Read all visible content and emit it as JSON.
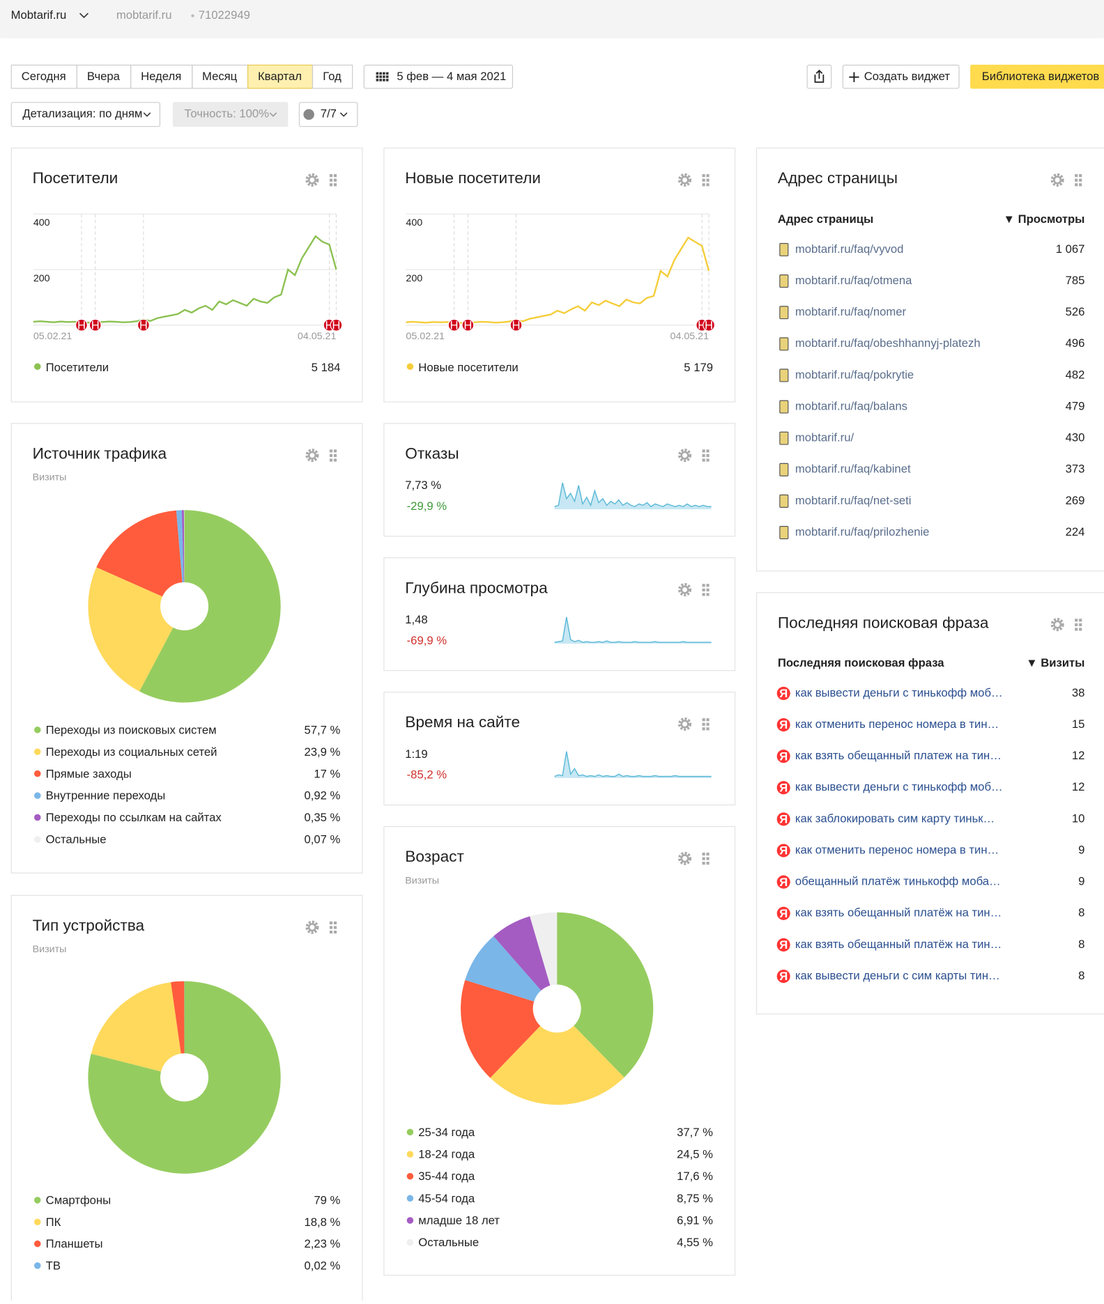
{
  "header": {
    "site": "Mobtarif.ru",
    "site_url": "mobtarif.ru",
    "counter_id": "71022949"
  },
  "toolbar": {
    "periods": [
      "Сегодня",
      "Вчера",
      "Неделя",
      "Месяц",
      "Квартал",
      "Год"
    ],
    "active_period": 4,
    "date_range": "5 фев — 4 мая 2021",
    "create_widget": "Создать виджет",
    "library": "Библиотека виджетов",
    "detail": "Детализация: по дням",
    "accuracy": "Точность: 100%",
    "segments": "7/7"
  },
  "visitors": {
    "title": "Посетители",
    "ylim": [
      0,
      400
    ],
    "yticks": [
      200,
      400
    ],
    "x_labels": [
      "05.02.21",
      "04.05.21"
    ],
    "color": "#8cc152",
    "values": [
      12,
      14,
      12,
      10,
      13,
      11,
      12,
      10,
      9,
      12,
      11,
      13,
      12,
      10,
      11,
      14,
      20,
      15,
      25,
      30,
      35,
      40,
      55,
      45,
      60,
      70,
      55,
      85,
      75,
      90,
      80,
      70,
      95,
      85,
      80,
      100,
      110,
      200,
      180,
      240,
      280,
      320,
      300,
      290,
      200
    ],
    "legend": "Посетители",
    "total": "5 184",
    "event_label": "Н",
    "events": [
      7,
      9,
      16,
      43,
      44
    ]
  },
  "new_visitors": {
    "title": "Новые посетители",
    "ylim": [
      0,
      400
    ],
    "yticks": [
      200,
      400
    ],
    "x_labels": [
      "05.02.21",
      "04.05.21"
    ],
    "color": "#f5cd3a",
    "values": [
      10,
      12,
      10,
      9,
      11,
      10,
      11,
      9,
      8,
      11,
      10,
      12,
      11,
      9,
      10,
      13,
      18,
      14,
      23,
      28,
      33,
      38,
      52,
      43,
      57,
      68,
      52,
      82,
      72,
      88,
      78,
      68,
      92,
      82,
      78,
      98,
      105,
      195,
      175,
      235,
      275,
      315,
      300,
      285,
      195
    ],
    "legend": "Новые посетители",
    "total": "5 179",
    "event_label": "Н",
    "events": [
      7,
      9,
      16,
      43,
      44
    ]
  },
  "bounce": {
    "title": "Отказы",
    "value": "7,73 %",
    "change": "-29,9 %",
    "change_color": "#3f9b3a",
    "trend": [
      2,
      3,
      20,
      8,
      12,
      6,
      18,
      4,
      9,
      3,
      14,
      5,
      8,
      3,
      6,
      4,
      7,
      3,
      5,
      3,
      2,
      4,
      3,
      5,
      2,
      4,
      3,
      2,
      4,
      3,
      2,
      3,
      2,
      4,
      2,
      3,
      2,
      3,
      2,
      2
    ]
  },
  "depth": {
    "title": "Глубина просмотра",
    "value": "1,48",
    "change": "-69,9 %",
    "change_color": "#d0312d",
    "trend": [
      2,
      3,
      4,
      40,
      6,
      3,
      5,
      2,
      3,
      2,
      2,
      3,
      2,
      4,
      2,
      2,
      3,
      2,
      2,
      2,
      3,
      2,
      2,
      2,
      2,
      3,
      2,
      2,
      2,
      2,
      2,
      2,
      3,
      2,
      2,
      2,
      2,
      2,
      2,
      2
    ]
  },
  "time": {
    "title": "Время на сайте",
    "value": "1:19",
    "change": "-85,2 %",
    "change_color": "#d0312d",
    "trend": [
      2,
      4,
      3,
      34,
      5,
      12,
      3,
      4,
      2,
      3,
      2,
      4,
      2,
      3,
      2,
      2,
      5,
      2,
      3,
      2,
      2,
      3,
      2,
      2,
      2,
      3,
      2,
      2,
      2,
      2,
      3,
      2,
      2,
      2,
      2,
      2,
      2,
      2,
      2,
      2
    ]
  },
  "traffic": {
    "title": "Источник трафика",
    "subtitle": "Визиты",
    "labels": [
      "Переходы из поисковых систем",
      "Переходы из социальных сетей",
      "Прямые заходы",
      "Внутренние переходы",
      "Переходы по ссылкам на сайтах",
      "Остальные"
    ],
    "values": [
      57.7,
      23.9,
      17,
      0.92,
      0.35,
      0.07
    ],
    "value_labels": [
      "57,7 %",
      "23,9 %",
      "17 %",
      "0,92 %",
      "0,35 %",
      "0,07 %"
    ],
    "colors": [
      "#95cc5f",
      "#ffd95c",
      "#ff5c3d",
      "#7ab6e8",
      "#a45cc2",
      "#efefef"
    ]
  },
  "devices": {
    "title": "Тип устройства",
    "subtitle": "Визиты",
    "labels": [
      "Смартфоны",
      "ПК",
      "Планшеты",
      "ТВ"
    ],
    "values": [
      79,
      18.8,
      2.23,
      0.02
    ],
    "value_labels": [
      "79 %",
      "18,8 %",
      "2,23 %",
      "0,02 %"
    ],
    "colors": [
      "#95cc5f",
      "#ffd95c",
      "#ff5c3d",
      "#7ab6e8"
    ]
  },
  "age": {
    "title": "Возраст",
    "subtitle": "Визиты",
    "labels": [
      "25-34 года",
      "18-24 года",
      "35-44 года",
      "45-54 года",
      "младше 18 лет",
      "Остальные"
    ],
    "values": [
      37.7,
      24.5,
      17.6,
      8.75,
      6.91,
      4.55
    ],
    "value_labels": [
      "37,7 %",
      "24,5 %",
      "17,6 %",
      "8,75 %",
      "6,91 %",
      "4,55 %"
    ],
    "colors": [
      "#95cc5f",
      "#ffd95c",
      "#ff5c3d",
      "#7ab6e8",
      "#a45cc2",
      "#efefef"
    ]
  },
  "pages": {
    "title": "Адрес страницы",
    "columns": [
      "Адрес страницы",
      "▼ Просмотры"
    ],
    "rows": [
      [
        "mobtarif.ru/faq/vyvod",
        "1 067"
      ],
      [
        "mobtarif.ru/faq/otmena",
        "785"
      ],
      [
        "mobtarif.ru/faq/nomer",
        "526"
      ],
      [
        "mobtarif.ru/faq/obeshhannyj-platezh",
        "496"
      ],
      [
        "mobtarif.ru/faq/pokrytie",
        "482"
      ],
      [
        "mobtarif.ru/faq/balans",
        "479"
      ],
      [
        "mobtarif.ru/",
        "430"
      ],
      [
        "mobtarif.ru/faq/kabinet",
        "373"
      ],
      [
        "mobtarif.ru/faq/net-seti",
        "269"
      ],
      [
        "mobtarif.ru/faq/prilozhenie",
        "224"
      ]
    ]
  },
  "phrases": {
    "title": "Последняя поисковая фраза",
    "columns": [
      "Последняя поисковая фраза",
      "▼ Визиты"
    ],
    "engine_icon": "Я",
    "rows": [
      [
        "как вывести деньги с тинькофф моб…",
        "38"
      ],
      [
        "как отменить перенос номера в тин…",
        "15"
      ],
      [
        "как взять обещанный платеж на тин…",
        "12"
      ],
      [
        "как вывести деньги с тинькофф моб…",
        "12"
      ],
      [
        "как заблокировать сим карту тиньк…",
        "10"
      ],
      [
        "как отменить перенос номера в тин…",
        "9"
      ],
      [
        "обещанный платёж тинькофф моба…",
        "9"
      ],
      [
        "как взять обещанный платёж на тин…",
        "8"
      ],
      [
        "как взять обещанный платёж на тин…",
        "8"
      ],
      [
        "как вывести деньги с сим карты тин…",
        "8"
      ]
    ]
  }
}
